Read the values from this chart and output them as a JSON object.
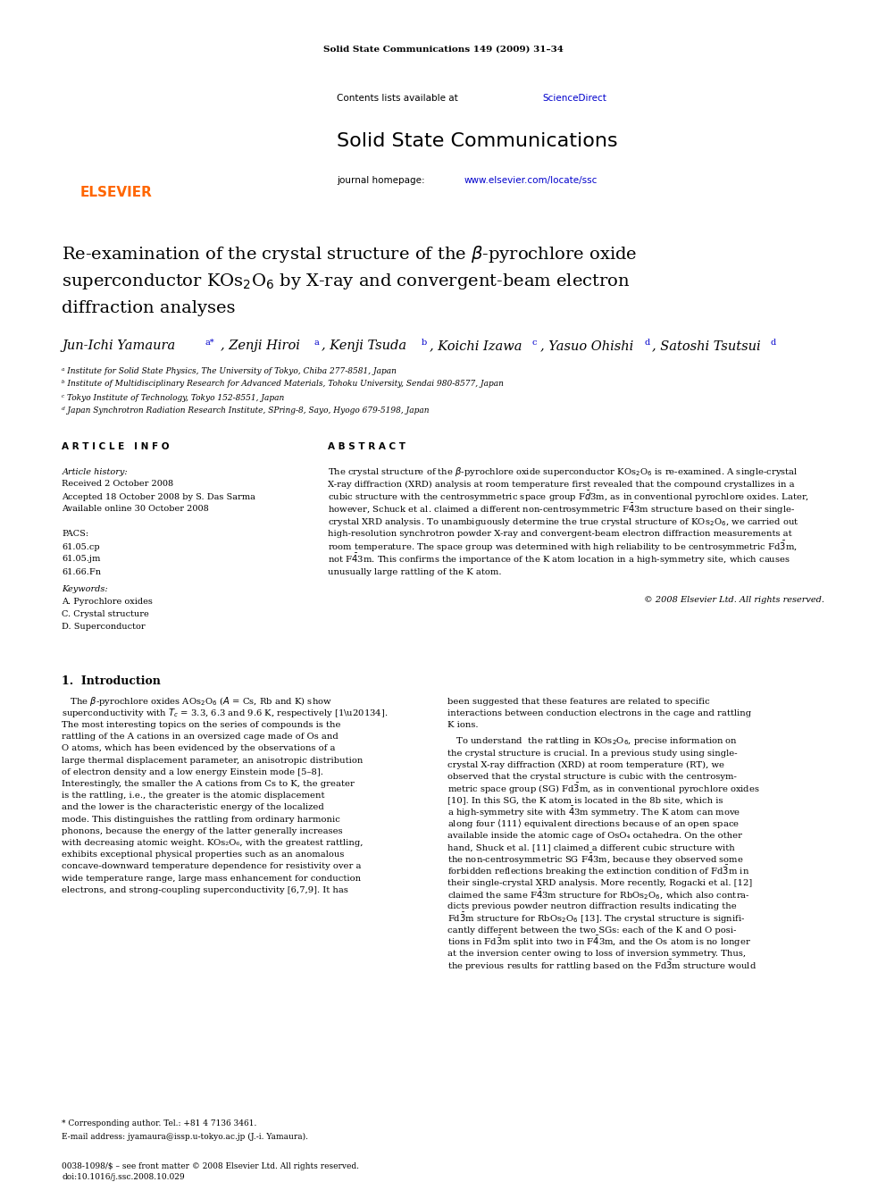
{
  "page_width": 9.92,
  "page_height": 13.23,
  "bg_color": "#ffffff",
  "header_journal_line": "Solid State Communications 149 (2009) 31-34",
  "journal_name": "Solid State Communications",
  "sciencedirect_text": "Contents lists available at ScienceDirect",
  "journal_url": "www.elsevier.com/locate/ssc",
  "elsevier_text": "ELSEVIER",
  "article_info_header": "A R T I C L E   I N F O",
  "article_history_label": "Article history:",
  "received": "Received 2 October 2008",
  "accepted": "Accepted 18 October 2008 by S. Das Sarma",
  "available": "Available online 30 October 2008",
  "pacs_label": "PACS:",
  "pacs1": "61.05.cp",
  "pacs2": "61.05.jm",
  "pacs3": "61.66.Fn",
  "keywords_label": "Keywords:",
  "kw1": "A. Pyrochlore oxides",
  "kw2": "C. Crystal structure",
  "kw3": "D. Superconductor",
  "abstract_header": "A B S T R A C T",
  "footnote_star": "* Corresponding author. Tel.: +81 4 7136 3461.",
  "footnote_email": "E-mail address: jyamaura@issp.u-tokyo.ac.jp (J.-i. Yamaura).",
  "footer_issn": "0038-1098/$ - see front matter 2008 Elsevier Ltd. All rights reserved.",
  "footer_doi": "doi:10.1016/j.ssc.2008.10.029",
  "header_bg": "#f0f0f0",
  "link_color": "#0000cc",
  "elsevier_color": "#ff6600",
  "dark_bar_color": "#1a1a1a"
}
